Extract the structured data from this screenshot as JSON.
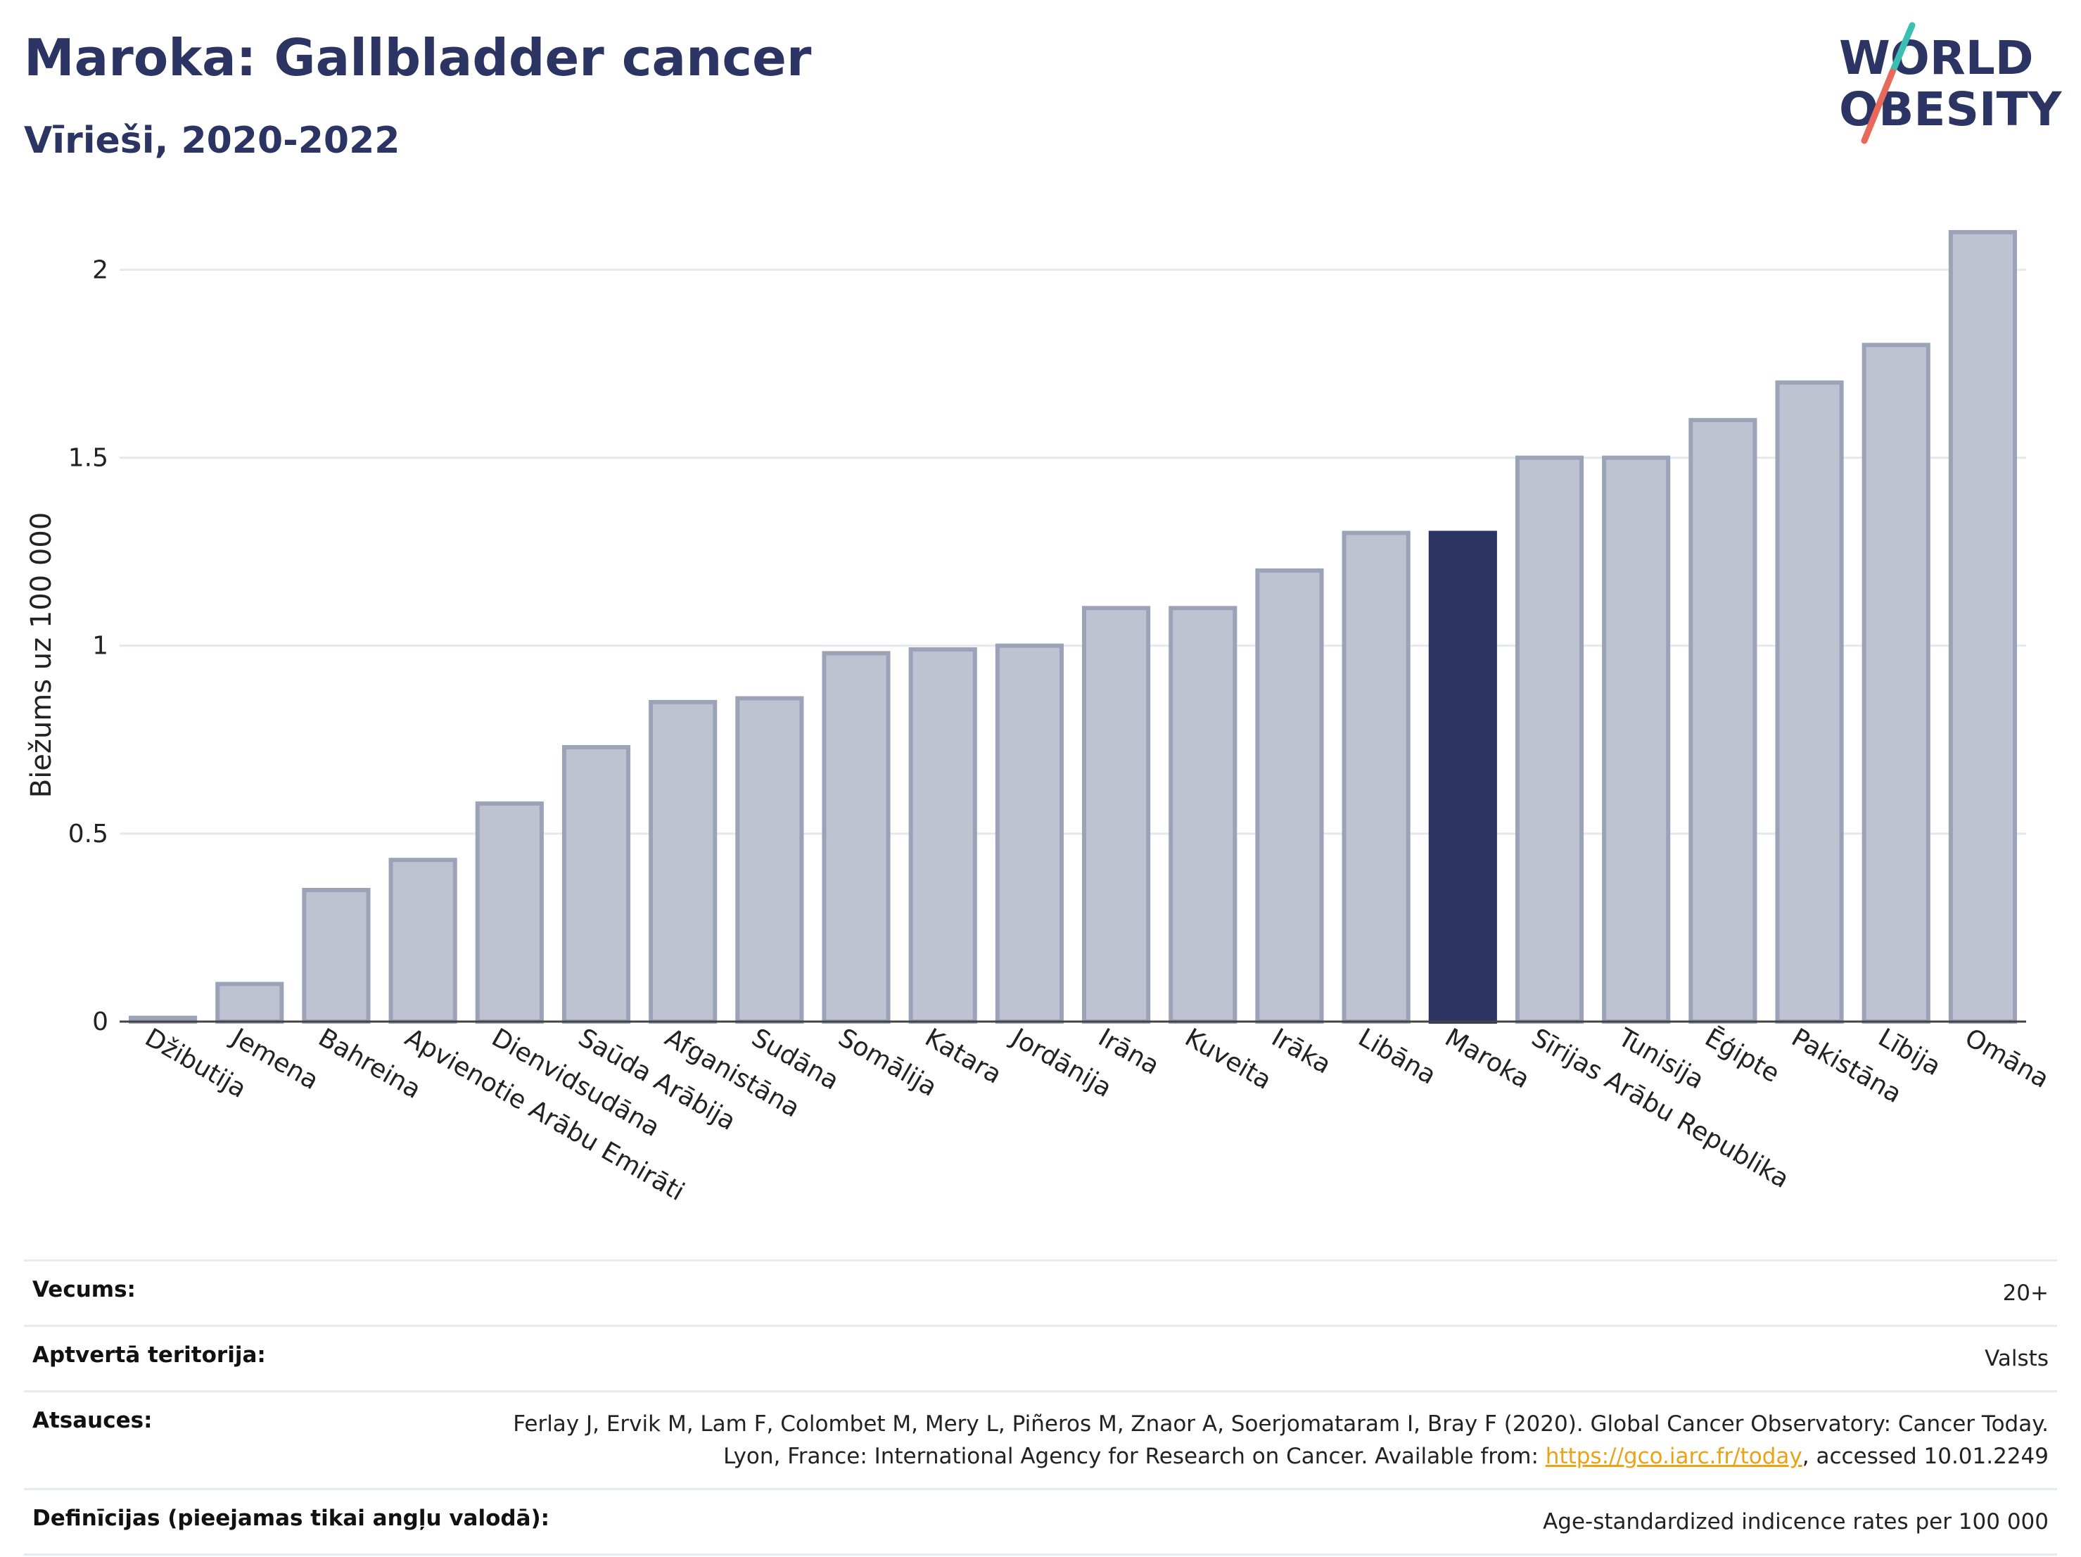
{
  "header": {
    "title": "Maroka: Gallbladder cancer",
    "subtitle": "Vīrieši, 2020-2022"
  },
  "logo": {
    "line1": "WORLD",
    "line2": "OBESITY",
    "colors": {
      "text": "#2b3463",
      "slash_teal": "#3bbfb3",
      "slash_red": "#e8685a"
    }
  },
  "chart_data": {
    "type": "bar",
    "ylabel": "Biežums uz 100 000",
    "ylim": [
      0,
      2.1
    ],
    "yticks": [
      0,
      0.5,
      1,
      1.5,
      2
    ],
    "ytick_labels": [
      "0",
      "0.5",
      "1",
      "1.5",
      "2"
    ],
    "grid": true,
    "highlight": "Maroka",
    "colors": {
      "bar": "#bfc3d1",
      "bar_border": "#9ca2b8",
      "highlight": "#2b3463",
      "grid": "#e6e8ef",
      "axis": "#444444"
    },
    "categories": [
      "Džibutija",
      "Jemena",
      "Bahreina",
      "Apvienotie Arābu Emirāti",
      "Dienvidsudāna",
      "Saūda Arābija",
      "Afganistāna",
      "Sudāna",
      "Somālija",
      "Katara",
      "Jordānija",
      "Irāna",
      "Kuveita",
      "Irāka",
      "Libāna",
      "Maroka",
      "Sīrijas Arābu Republika",
      "Tunisija",
      "Ēģipte",
      "Pakistāna",
      "Lībija",
      "Omāna"
    ],
    "values": [
      0.01,
      0.1,
      0.35,
      0.43,
      0.58,
      0.73,
      0.85,
      0.86,
      0.98,
      0.99,
      1.0,
      1.1,
      1.1,
      1.2,
      1.3,
      1.3,
      1.5,
      1.5,
      1.6,
      1.7,
      1.8,
      2.1
    ]
  },
  "info": {
    "age_label": "Vecums:",
    "age_value": "20+",
    "coverage_label": "Aptvertā teritorija:",
    "coverage_value": "Valsts",
    "refs_label": "Atsauces:",
    "refs_text_1": "Ferlay J, Ervik M, Lam F, Colombet M, Mery L, Piñeros M, Znaor A, Soerjomataram I, Bray F (2020). Global Cancer Observatory: Cancer Today. Lyon, France: International Agency for Research on Cancer. Available from: ",
    "refs_link": "https://gco.iarc.fr/today",
    "refs_text_2": ", accessed 10.01.2249",
    "defs_label": "Definīcijas (pieejamas tikai angļu valodā):",
    "defs_value": "Age-standardized indicence rates per 100 000"
  }
}
